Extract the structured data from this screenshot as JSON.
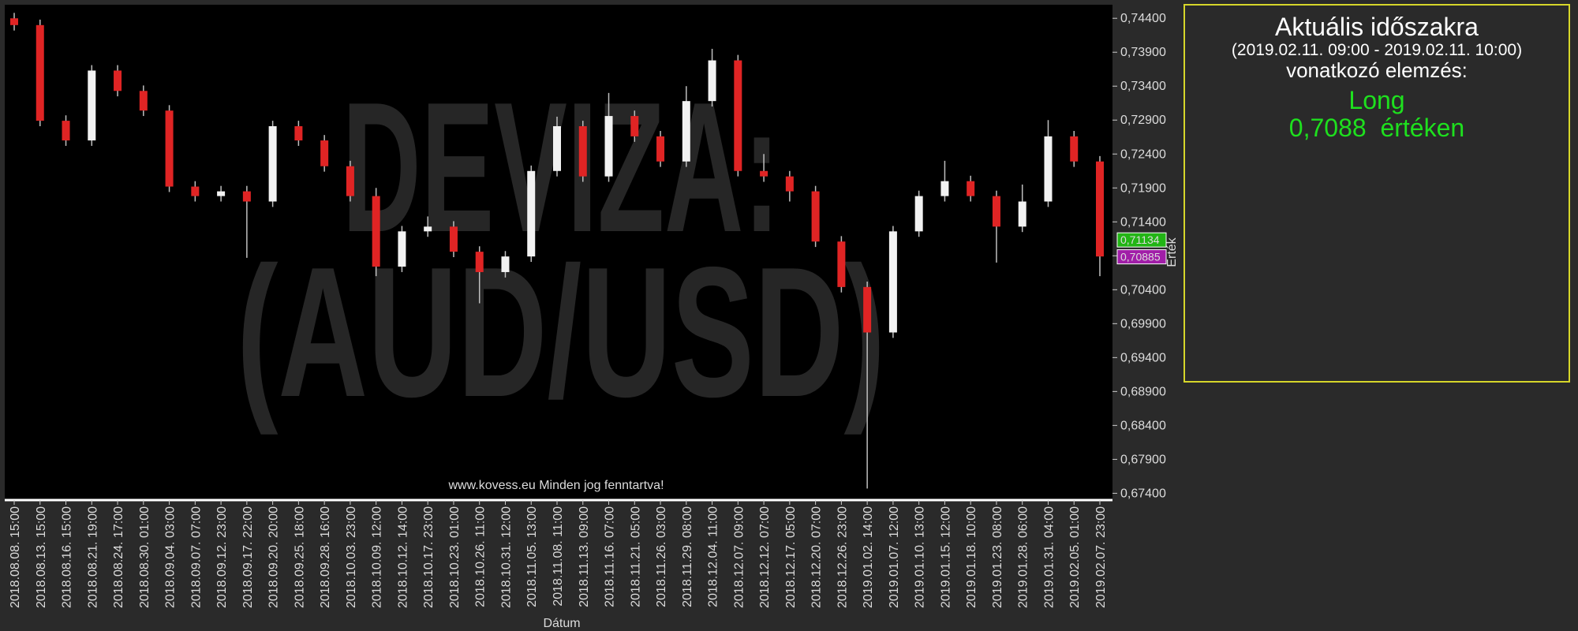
{
  "chart_data": {
    "type": "candlestick",
    "watermark": [
      "DEVIZA:",
      "(AUD/USD)"
    ],
    "footer": "www.kovess.eu Minden jog fenntartva!",
    "x_label": "Dátum",
    "y_label": "Érték",
    "up_color": "#f2f2f2",
    "down_color": "#e02424",
    "wick_color": "#bfbfbf",
    "categories": [
      "2018.08.08. 15:00",
      "2018.08.13. 15:00",
      "2018.08.16. 15:00",
      "2018.08.21. 19:00",
      "2018.08.24. 17:00",
      "2018.08.30. 01:00",
      "2018.09.04. 03:00",
      "2018.09.07. 07:00",
      "2018.09.12. 23:00",
      "2018.09.17. 22:00",
      "2018.09.20. 20:00",
      "2018.09.25. 18:00",
      "2018.09.28. 16:00",
      "2018.10.03. 23:00",
      "2018.10.09. 12:00",
      "2018.10.12. 14:00",
      "2018.10.17. 23:00",
      "2018.10.23. 01:00",
      "2018.10.26. 11:00",
      "2018.10.31. 12:00",
      "2018.11.05. 13:00",
      "2018.11.08. 11:00",
      "2018.11.13. 09:00",
      "2018.11.16. 07:00",
      "2018.11.21. 05:00",
      "2018.11.26. 03:00",
      "2018.11.29. 08:00",
      "2018.12.04. 11:00",
      "2018.12.07. 09:00",
      "2018.12.12. 07:00",
      "2018.12.17. 05:00",
      "2018.12.20. 07:00",
      "2018.12.26. 23:00",
      "2019.01.02. 14:00",
      "2019.01.07. 12:00",
      "2019.01.10. 13:00",
      "2019.01.15. 12:00",
      "2019.01.18. 10:00",
      "2019.01.23. 08:00",
      "2019.01.28. 06:00",
      "2019.01.31. 04:00",
      "2019.02.05. 01:00",
      "2019.02.07. 23:00"
    ],
    "open": [
      0.744,
      0.743,
      0.7289,
      0.726,
      0.7363,
      0.7333,
      0.7304,
      0.7192,
      0.7178,
      0.7185,
      0.717,
      0.7281,
      0.726,
      0.7222,
      0.7178,
      0.7074,
      0.7126,
      0.7133,
      0.7096,
      0.7066,
      0.7089,
      0.7215,
      0.7281,
      0.7207,
      0.7296,
      0.7266,
      0.7229,
      0.7318,
      0.7378,
      0.7215,
      0.7207,
      0.7185,
      0.7111,
      0.7044,
      0.6977,
      0.7126,
      0.7178,
      0.72,
      0.7178,
      0.7133,
      0.717,
      0.7266,
      0.7229
    ],
    "high": [
      0.7448,
      0.7438,
      0.7297,
      0.7371,
      0.7371,
      0.7341,
      0.7312,
      0.72,
      0.7193,
      0.7193,
      0.7289,
      0.7289,
      0.7268,
      0.723,
      0.719,
      0.7134,
      0.7148,
      0.7141,
      0.7104,
      0.7097,
      0.7223,
      0.7295,
      0.7289,
      0.733,
      0.7304,
      0.7274,
      0.734,
      0.7395,
      0.7386,
      0.724,
      0.7215,
      0.7193,
      0.7119,
      0.7052,
      0.7134,
      0.7186,
      0.723,
      0.7208,
      0.7186,
      0.7195,
      0.729,
      0.7274,
      0.7237
    ],
    "low": [
      0.7422,
      0.7281,
      0.7252,
      0.7252,
      0.7325,
      0.7296,
      0.7184,
      0.717,
      0.717,
      0.7087,
      0.7162,
      0.7252,
      0.7214,
      0.717,
      0.706,
      0.7066,
      0.7118,
      0.7088,
      0.702,
      0.7058,
      0.7081,
      0.7207,
      0.7199,
      0.7199,
      0.7258,
      0.7221,
      0.7221,
      0.731,
      0.7207,
      0.7199,
      0.717,
      0.7103,
      0.7036,
      0.6747,
      0.6969,
      0.7118,
      0.717,
      0.717,
      0.708,
      0.7125,
      0.7162,
      0.7221,
      0.706
    ],
    "close": [
      0.743,
      0.7289,
      0.726,
      0.7363,
      0.7333,
      0.7304,
      0.7192,
      0.7178,
      0.7185,
      0.717,
      0.7281,
      0.726,
      0.7222,
      0.7178,
      0.7074,
      0.7126,
      0.7133,
      0.7096,
      0.7066,
      0.7089,
      0.7215,
      0.7281,
      0.7207,
      0.7296,
      0.7266,
      0.7229,
      0.7318,
      0.7378,
      0.7215,
      0.7207,
      0.7185,
      0.7111,
      0.7044,
      0.6977,
      0.7126,
      0.7178,
      0.72,
      0.7178,
      0.7133,
      0.717,
      0.7266,
      0.7229,
      0.7089
    ],
    "ylim": [
      0.673,
      0.746
    ],
    "yticks": [
      {
        "value": 0.674,
        "label": "0,67400"
      },
      {
        "value": 0.679,
        "label": "0,67900"
      },
      {
        "value": 0.684,
        "label": "0,68400"
      },
      {
        "value": 0.689,
        "label": "0,68900"
      },
      {
        "value": 0.694,
        "label": "0,69400"
      },
      {
        "value": 0.699,
        "label": "0,69900"
      },
      {
        "value": 0.704,
        "label": "0,70400"
      },
      {
        "value": 0.709,
        "label": "0,70900"
      },
      {
        "value": 0.714,
        "label": "0,71400"
      },
      {
        "value": 0.719,
        "label": "0,71900"
      },
      {
        "value": 0.724,
        "label": "0,72400"
      },
      {
        "value": 0.729,
        "label": "0,72900"
      },
      {
        "value": 0.734,
        "label": "0,73400"
      },
      {
        "value": 0.739,
        "label": "0,73900"
      },
      {
        "value": 0.744,
        "label": "0,74400"
      }
    ],
    "price_labels": [
      {
        "value": 0.71134,
        "label": "0,71134",
        "color": "#22b515"
      },
      {
        "value": 0.70885,
        "label": "0,70885",
        "color": "#a11ea8"
      }
    ]
  },
  "panel": {
    "title": "Aktuális időszakra",
    "period": "(2019.02.11. 09:00 - 2019.02.11. 10:00)",
    "subtitle": "vonatkozó elemzés:",
    "signal": "Long",
    "price": "0,7088",
    "price_suffix": "értéken"
  }
}
